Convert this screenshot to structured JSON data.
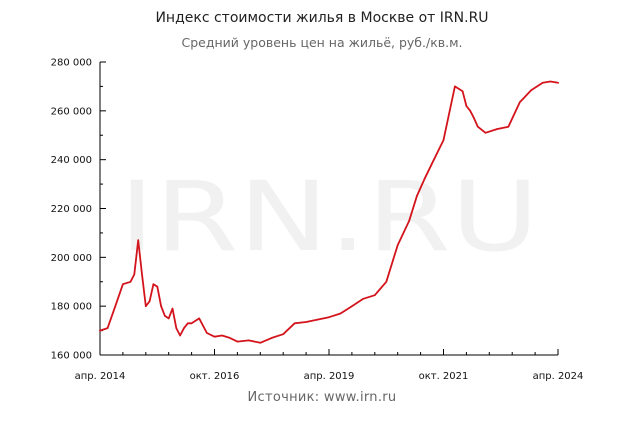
{
  "header": {
    "title": "Индекс стоимости жилья в Москве от IRN.RU",
    "subtitle": "Средний уровень цен на жильё, руб./кв.м."
  },
  "footer": {
    "source": "Источник: www.irn.ru"
  },
  "watermark": "IRN.RU",
  "colors": {
    "line": "#d4141c",
    "axis": "#000000",
    "watermark": "#f1f1f1"
  },
  "chart_data": {
    "type": "line",
    "title": "Индекс стоимости жилья в Москве от IRN.RU",
    "subtitle": "Средний уровень цен на жильё, руб./кв.м.",
    "xlabel": "",
    "ylabel": "",
    "ylim": [
      160000,
      280000
    ],
    "xlim": [
      "2014-04",
      "2024-04"
    ],
    "grid": false,
    "y_ticks": [
      160000,
      180000,
      200000,
      220000,
      240000,
      260000,
      280000
    ],
    "y_tick_labels": [
      "160 000",
      "180 000",
      "200 000",
      "220 000",
      "240 000",
      "260 000",
      "280 000"
    ],
    "x_ticks": [
      "2014-04",
      "2016-10",
      "2019-04",
      "2021-10",
      "2024-04"
    ],
    "x_tick_labels": [
      "апр. 2014",
      "окт. 2016",
      "апр. 2019",
      "окт. 2021",
      "апр. 2024"
    ],
    "series": [
      {
        "x": [
          "2014-04",
          "2014-06",
          "2014-08",
          "2014-10",
          "2014-12",
          "2015-01",
          "2015-02",
          "2015-03",
          "2015-04",
          "2015-05",
          "2015-06",
          "2015-07",
          "2015-08",
          "2015-09",
          "2015-10",
          "2015-11",
          "2015-12",
          "2016-01",
          "2016-02",
          "2016-03",
          "2016-04",
          "2016-06",
          "2016-08",
          "2016-10",
          "2016-12",
          "2017-02",
          "2017-04",
          "2017-07",
          "2017-10",
          "2018-01",
          "2018-04",
          "2018-07",
          "2018-10",
          "2019-01",
          "2019-04",
          "2019-07",
          "2019-10",
          "2020-01",
          "2020-04",
          "2020-07",
          "2020-10",
          "2021-01",
          "2021-03",
          "2021-05",
          "2021-07",
          "2021-10",
          "2022-01",
          "2022-03",
          "2022-04",
          "2022-05",
          "2022-06",
          "2022-07",
          "2022-09",
          "2022-12",
          "2023-03",
          "2023-06",
          "2023-09",
          "2023-12",
          "2024-02",
          "2024-04"
        ],
        "values": [
          170000,
          171000,
          180000,
          189000,
          190000,
          193000,
          207000,
          193000,
          180000,
          182000,
          189000,
          188000,
          180000,
          176000,
          175000,
          179000,
          171000,
          168000,
          171000,
          173000,
          173000,
          175000,
          169000,
          167500,
          168000,
          167000,
          165500,
          166000,
          165000,
          167000,
          168500,
          173000,
          173500,
          174500,
          175500,
          177000,
          180000,
          183000,
          184500,
          190000,
          205000,
          215000,
          225000,
          232000,
          238500,
          248000,
          270000,
          268000,
          262000,
          260000,
          257000,
          253500,
          251000,
          252500,
          253500,
          263500,
          268500,
          271500,
          272000,
          271500
        ]
      }
    ]
  }
}
